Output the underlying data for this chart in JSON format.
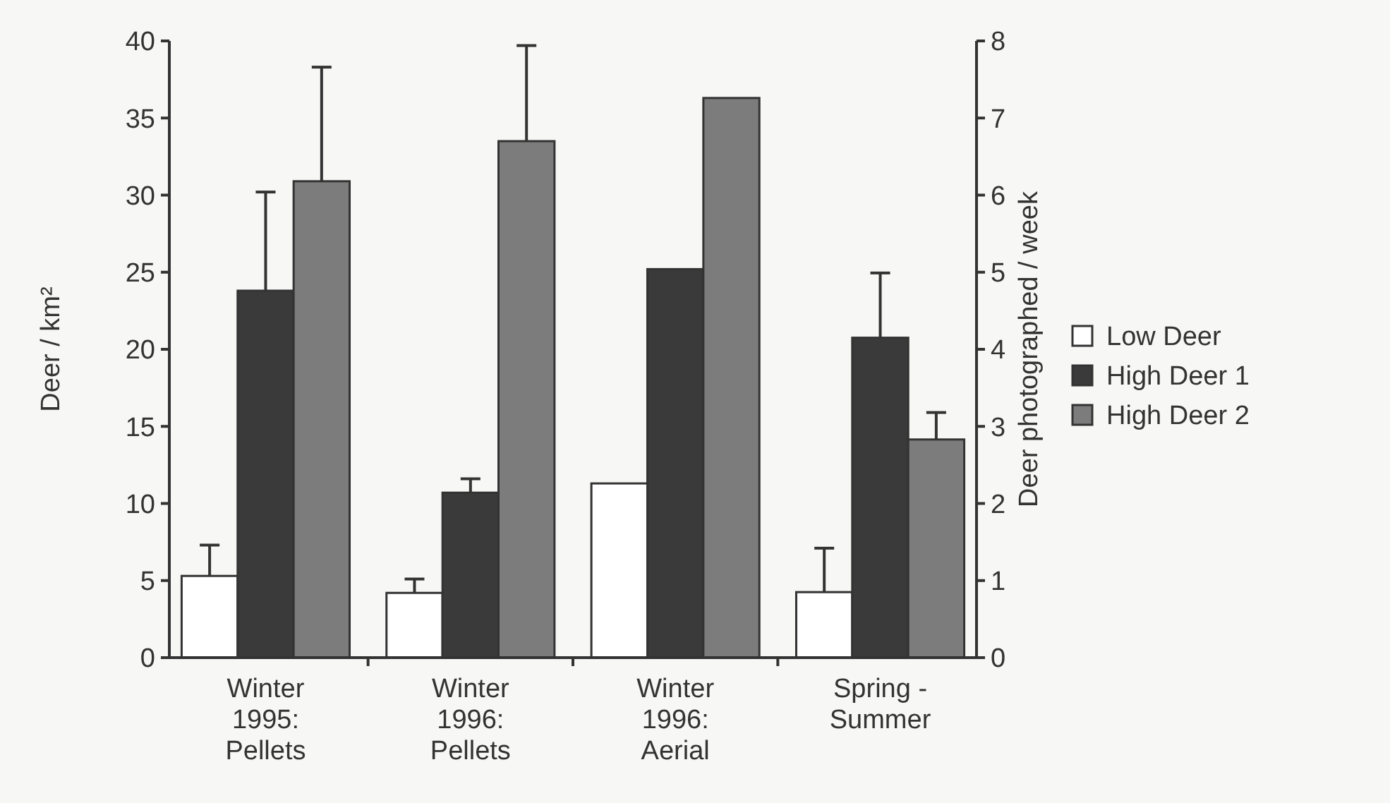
{
  "chart_data": {
    "type": "bar",
    "categories": [
      "Winter\n1995:\nPellets",
      "Winter\n1996:\nPellets",
      "Winter\n1996:\nAerial",
      "Spring -\nSummer"
    ],
    "series": [
      {
        "name": "Low Deer",
        "color": "#ffffff",
        "values": [
          5.3,
          4.2,
          11.3,
          null
        ],
        "errors": [
          2.0,
          0.9,
          null,
          null
        ]
      },
      {
        "name": "High Deer 1",
        "color": "#3a3a3a",
        "values": [
          23.8,
          10.7,
          25.2,
          null
        ],
        "errors": [
          6.4,
          0.9,
          null,
          null
        ]
      },
      {
        "name": "High Deer 2",
        "color": "#7c7c7c",
        "values": [
          30.9,
          33.5,
          36.3,
          null
        ],
        "errors": [
          7.4,
          6.2,
          null,
          null
        ]
      },
      {
        "color": "#ffffff",
        "axis": "y2",
        "values": [
          null,
          null,
          null,
          0.85
        ],
        "errors": [
          null,
          null,
          null,
          0.57
        ]
      },
      {
        "color": "#3a3a3a",
        "axis": "y2",
        "values": [
          null,
          null,
          null,
          4.15
        ],
        "errors": [
          null,
          null,
          null,
          0.84
        ]
      },
      {
        "color": "#7c7c7c",
        "axis": "y2",
        "values": [
          null,
          null,
          null,
          2.83
        ],
        "errors": [
          null,
          null,
          null,
          0.35
        ]
      }
    ],
    "ylabel": "Deer / km²",
    "y2label": "Deer photographed / week",
    "ylim": [
      0,
      40
    ],
    "yticks": [
      0,
      5,
      10,
      15,
      20,
      25,
      30,
      35,
      40
    ],
    "y2lim": [
      0,
      8
    ],
    "y2ticks": [
      0,
      1,
      2,
      3,
      4,
      5,
      6,
      7,
      8
    ],
    "legend": "right"
  }
}
